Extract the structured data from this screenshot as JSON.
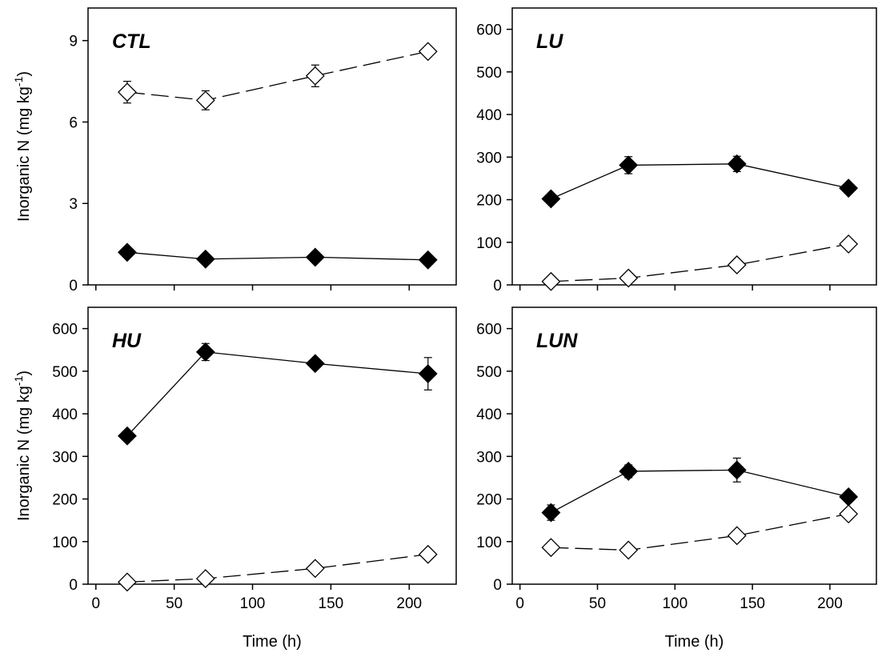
{
  "chart_data": [
    {
      "type": "line",
      "panel_label": "CTL",
      "xlim": [
        -5,
        230
      ],
      "ylim": [
        0,
        10.2
      ],
      "y_ticks": [
        "0",
        "3",
        "6",
        "9"
      ],
      "x_ticks": [
        "0",
        "50",
        "100",
        "150",
        "200"
      ],
      "ylabel": "Inorganic N (mg kg",
      "ylabel_sup": "-1",
      "ylabel_end": ")",
      "xlabel": "",
      "x": [
        20,
        70,
        140,
        212
      ],
      "series": [
        {
          "marker": "open-diamond",
          "line": "dashed",
          "values": [
            7.1,
            6.8,
            7.7,
            8.6
          ],
          "errors": [
            0.4,
            0.35,
            0.4,
            0.1
          ]
        },
        {
          "marker": "filled-diamond",
          "line": "solid",
          "values": [
            1.2,
            0.95,
            1.02,
            0.92
          ],
          "errors": [
            0.05,
            0.05,
            0.05,
            0.05
          ]
        }
      ]
    },
    {
      "type": "line",
      "panel_label": "LU",
      "xlim": [
        -5,
        230
      ],
      "ylim": [
        0,
        650
      ],
      "y_ticks": [
        "0",
        "100",
        "200",
        "300",
        "400",
        "500",
        "600"
      ],
      "x_ticks": [
        "0",
        "50",
        "100",
        "150",
        "200"
      ],
      "ylabel": "",
      "ylabel_sup": "",
      "ylabel_end": "",
      "xlabel": "",
      "x": [
        20,
        70,
        140,
        212
      ],
      "series": [
        {
          "marker": "filled-diamond",
          "line": "solid",
          "values": [
            202,
            281,
            284,
            227
          ],
          "errors": [
            8,
            20,
            18,
            8
          ]
        },
        {
          "marker": "open-diamond",
          "line": "dashed",
          "values": [
            8,
            16,
            47,
            96
          ],
          "errors": [
            3,
            4,
            5,
            5
          ]
        }
      ]
    },
    {
      "type": "line",
      "panel_label": "HU",
      "xlim": [
        -5,
        230
      ],
      "ylim": [
        0,
        650
      ],
      "y_ticks": [
        "0",
        "100",
        "200",
        "300",
        "400",
        "500",
        "600"
      ],
      "x_ticks": [
        "0",
        "50",
        "100",
        "150",
        "200"
      ],
      "ylabel": "Inorganic N (mg kg",
      "ylabel_sup": "-1",
      "ylabel_end": ")",
      "xlabel": "Time (h)",
      "x": [
        20,
        70,
        140,
        212
      ],
      "series": [
        {
          "marker": "filled-diamond",
          "line": "solid",
          "values": [
            348,
            545,
            518,
            494
          ],
          "errors": [
            8,
            20,
            8,
            38
          ]
        },
        {
          "marker": "open-diamond",
          "line": "dashed",
          "values": [
            5,
            13,
            37,
            70
          ],
          "errors": [
            3,
            4,
            5,
            5
          ]
        }
      ]
    },
    {
      "type": "line",
      "panel_label": "LUN",
      "xlim": [
        -5,
        230
      ],
      "ylim": [
        0,
        650
      ],
      "y_ticks": [
        "0",
        "100",
        "200",
        "300",
        "400",
        "500",
        "600"
      ],
      "x_ticks": [
        "0",
        "50",
        "100",
        "150",
        "200"
      ],
      "ylabel": "",
      "ylabel_sup": "",
      "ylabel_end": "",
      "xlabel": "Time (h)",
      "x": [
        20,
        70,
        140,
        212
      ],
      "series": [
        {
          "marker": "filled-diamond",
          "line": "solid",
          "values": [
            168,
            265,
            268,
            205
          ],
          "errors": [
            18,
            15,
            28,
            12
          ]
        },
        {
          "marker": "open-diamond",
          "line": "dashed",
          "values": [
            86,
            80,
            114,
            165
          ],
          "errors": [
            5,
            5,
            6,
            6
          ]
        }
      ]
    }
  ]
}
